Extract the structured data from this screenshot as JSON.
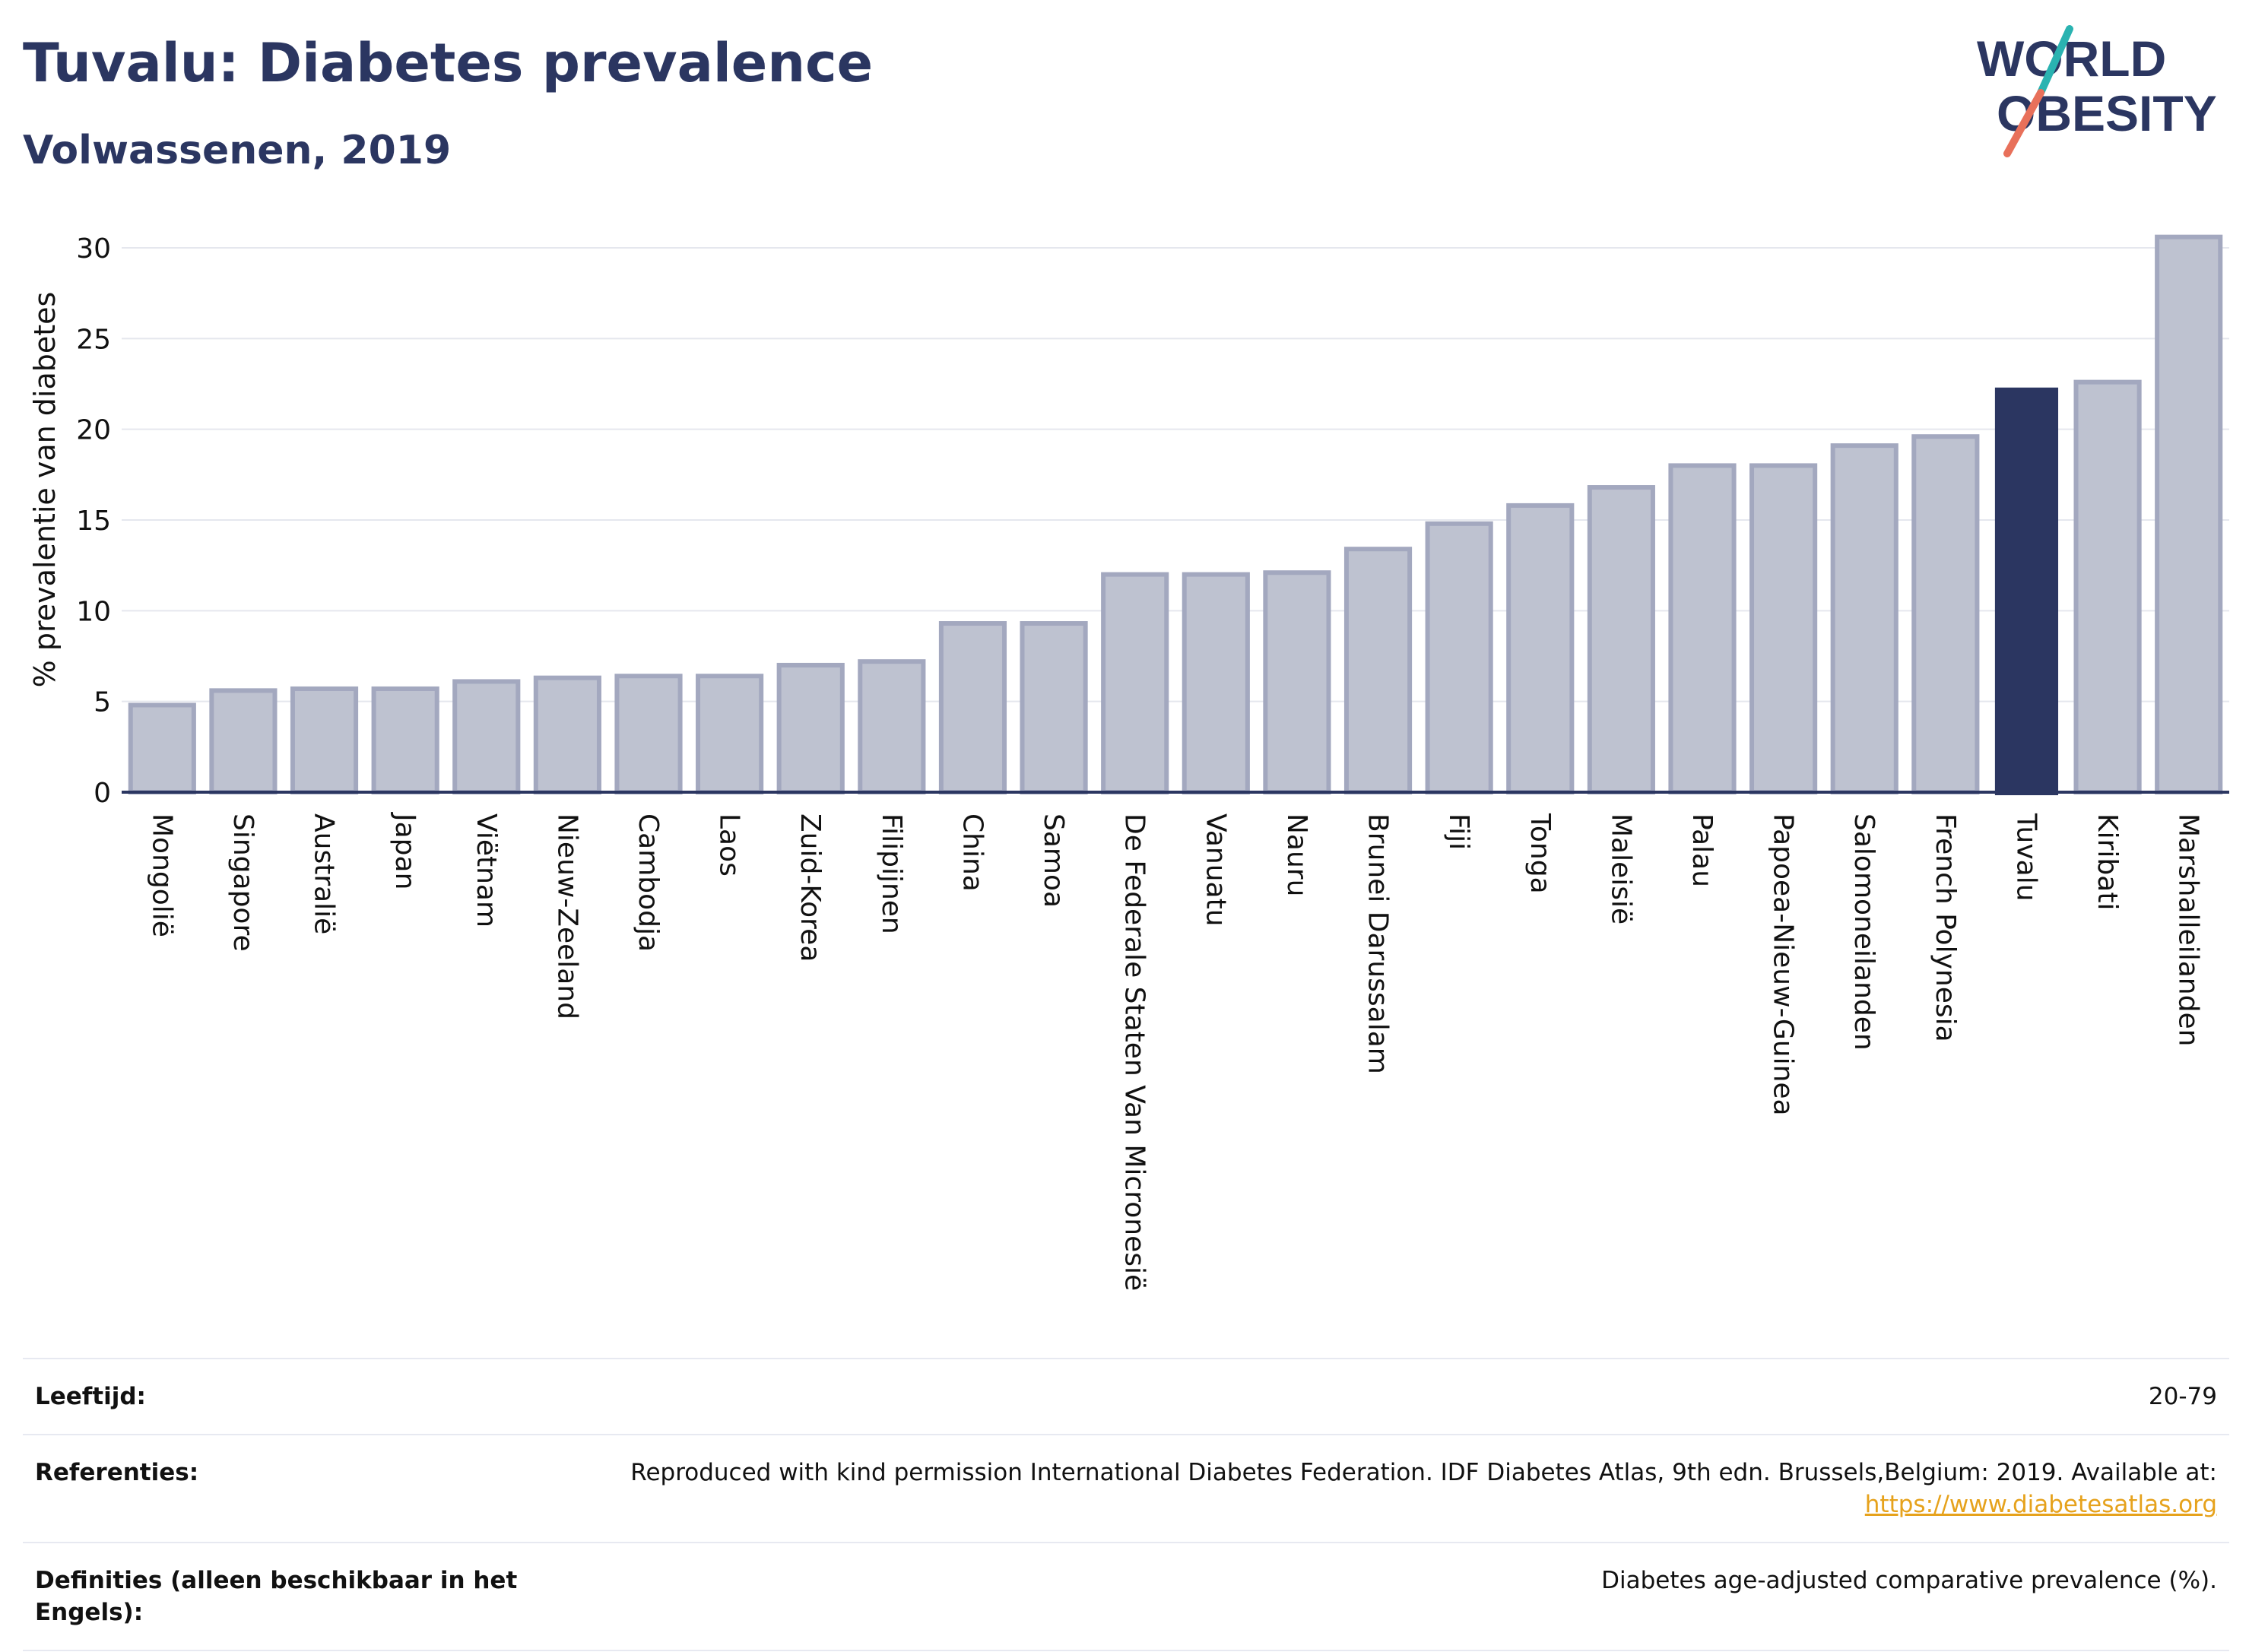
{
  "header": {
    "title": "Tuvalu: Diabetes prevalence",
    "subtitle": "Volwassenen, 2019"
  },
  "logo": {
    "line1": "WORLD",
    "line2": "OBESITY",
    "colors": {
      "navy": "#2b3661",
      "teal": "#2ab3b1",
      "coral": "#e8705a"
    }
  },
  "colors": {
    "bar": "#bec2d0",
    "bar_stroke": "#a3a8bf",
    "highlight": "#2b3661",
    "axis": "#2b3661",
    "grid": "#e5e7ee"
  },
  "chart_data": {
    "type": "bar",
    "title": "",
    "xlabel": "",
    "ylabel": "% prevalentie van diabetes",
    "ylim": [
      0,
      32
    ],
    "yticks": [
      0,
      5,
      10,
      15,
      20,
      25,
      30
    ],
    "grid": true,
    "highlight": "Tuvalu",
    "categories": [
      "Mongolië",
      "Singapore",
      "Australië",
      "Japan",
      "Viëtnam",
      "Nieuw-Zeeland",
      "Cambodja",
      "Laos",
      "Zuid-Korea",
      "Filipijnen",
      "China",
      "Samoa",
      "De Federale Staten Van Micronesië",
      "Vanuatu",
      "Nauru",
      "Brunei Darussalam",
      "Fiji",
      "Tonga",
      "Maleisië",
      "Palau",
      "Papoea-Nieuw-Guinea",
      "Salomoneilanden",
      "French Polynesia",
      "Tuvalu",
      "Kiribati",
      "Marshalleilanden"
    ],
    "values": [
      4.8,
      5.6,
      5.7,
      5.7,
      6.1,
      6.3,
      6.4,
      6.4,
      7.0,
      7.2,
      9.3,
      9.3,
      12.0,
      12.0,
      12.1,
      13.4,
      14.8,
      15.8,
      16.8,
      18.0,
      18.0,
      19.1,
      19.6,
      22.3,
      22.6,
      30.6
    ]
  },
  "info": {
    "age_label": "Leeftijd:",
    "age_value": "20-79",
    "ref_label": "Referenties:",
    "ref_value": "Reproduced with kind permission International Diabetes Federation. IDF Diabetes Atlas, 9th edn. Brussels,Belgium: 2019. Available at:",
    "ref_link": "https://www.diabetesatlas.org",
    "def_label": "Definities (alleen beschikbaar in het Engels):",
    "def_value": "Diabetes age-adjusted comparative prevalence (%)."
  }
}
